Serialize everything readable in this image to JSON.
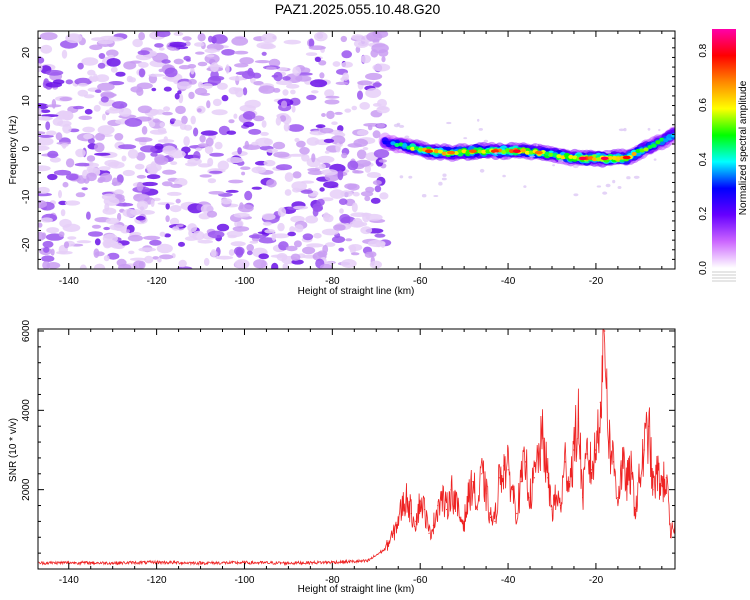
{
  "title": "PAZ1.2025.055.10.48.G20",
  "colors": {
    "snr_line": "#ee2222",
    "axis": "#000000",
    "spectrogram_background": "#ffffff"
  },
  "chart_data": [
    {
      "type": "heatmap",
      "xlabel": "Height of straight line (km)",
      "ylabel": "Frequency (Hz)",
      "xlim": [
        -147,
        -2
      ],
      "ylim": [
        -25,
        24.5
      ],
      "x_ticks": [
        -140,
        -120,
        -100,
        -80,
        -60,
        -40,
        -20
      ],
      "y_ticks": [
        -20,
        -10,
        0,
        10,
        20
      ],
      "colorbar": {
        "label": "Normalized spectral amplitude",
        "range": [
          0,
          0.88
        ],
        "ticks": [
          0,
          0.2,
          0.4,
          0.6,
          0.8
        ],
        "tick_labels": [
          "0.0",
          "0.2",
          "0.4",
          "0.6",
          "0.8"
        ],
        "colormap": [
          "#ffffff",
          "#cc66ff",
          "#6600ff",
          "#0000ff",
          "#00ffff",
          "#00ff00",
          "#ffff00",
          "#ff8800",
          "#ff0000",
          "#ff00aa"
        ]
      },
      "regions": {
        "noise_band": {
          "x": [
            -147,
            -68
          ],
          "frequency_range": [
            -25,
            24
          ],
          "normalized_amplitude": 0.05
        },
        "signal_start": -68
      },
      "signal_track": {
        "x": [
          -68,
          -63,
          -58,
          -53,
          -48,
          -43,
          -38,
          -33,
          -28,
          -23,
          -18,
          -13,
          -8,
          -2
        ],
        "frequency": [
          1.5,
          0.5,
          -0.5,
          -0.8,
          -0.5,
          -0.5,
          -0.5,
          -0.8,
          -1.5,
          -2.0,
          -2.0,
          -1.8,
          0.3,
          3.0
        ],
        "peak_amplitude": [
          0.35,
          0.55,
          0.75,
          0.7,
          0.72,
          0.75,
          0.8,
          0.7,
          0.65,
          0.82,
          0.82,
          0.78,
          0.55,
          0.5
        ]
      }
    },
    {
      "type": "line",
      "xlabel": "Height of straight line (km)",
      "ylabel": "SNR (10 * v/v)",
      "xlim": [
        -147,
        -2
      ],
      "ylim": [
        0,
        6050
      ],
      "x_ticks": [
        -140,
        -120,
        -100,
        -80,
        -60,
        -40,
        -20
      ],
      "y_ticks": [
        2000,
        4000,
        6000
      ],
      "series": [
        {
          "x": [
            -147,
            -140,
            -130,
            -120,
            -110,
            -100,
            -90,
            -80,
            -72,
            -68,
            -66,
            -64,
            -63,
            -62,
            -61,
            -60,
            -59,
            -58,
            -57,
            -56,
            -55,
            -54,
            -53,
            -52,
            -51,
            -50,
            -49,
            -48,
            -47,
            -46,
            -45,
            -44,
            -43,
            -42,
            -41,
            -40,
            -39,
            -38,
            -37,
            -36,
            -35,
            -34,
            -33,
            -32,
            -31,
            -30,
            -29,
            -28,
            -27,
            -26,
            -25,
            -24,
            -23,
            -22,
            -21,
            -20,
            -19,
            -18,
            -17,
            -16,
            -15,
            -14,
            -13,
            -12,
            -11,
            -10,
            -9,
            -8,
            -7,
            -6,
            -5,
            -4,
            -3,
            -2
          ],
          "values": [
            150,
            160,
            150,
            170,
            150,
            160,
            150,
            170,
            200,
            500,
            900,
            1600,
            1800,
            1400,
            1200,
            1700,
            1500,
            900,
            1100,
            1600,
            1800,
            1500,
            2000,
            1700,
            1300,
            1200,
            1800,
            2200,
            1500,
            2400,
            1900,
            1300,
            1200,
            2300,
            2600,
            2500,
            2000,
            1400,
            2200,
            2700,
            1800,
            2300,
            2900,
            3300,
            2300,
            1500,
            1800,
            1600,
            2700,
            2200,
            3000,
            3800,
            1800,
            2900,
            2500,
            3000,
            4200,
            6000,
            3200,
            2700,
            1800,
            2600,
            2200,
            2400,
            1500,
            2300,
            3000,
            3600,
            2000,
            2400,
            2100,
            2300,
            800,
            1200
          ]
        }
      ]
    }
  ]
}
